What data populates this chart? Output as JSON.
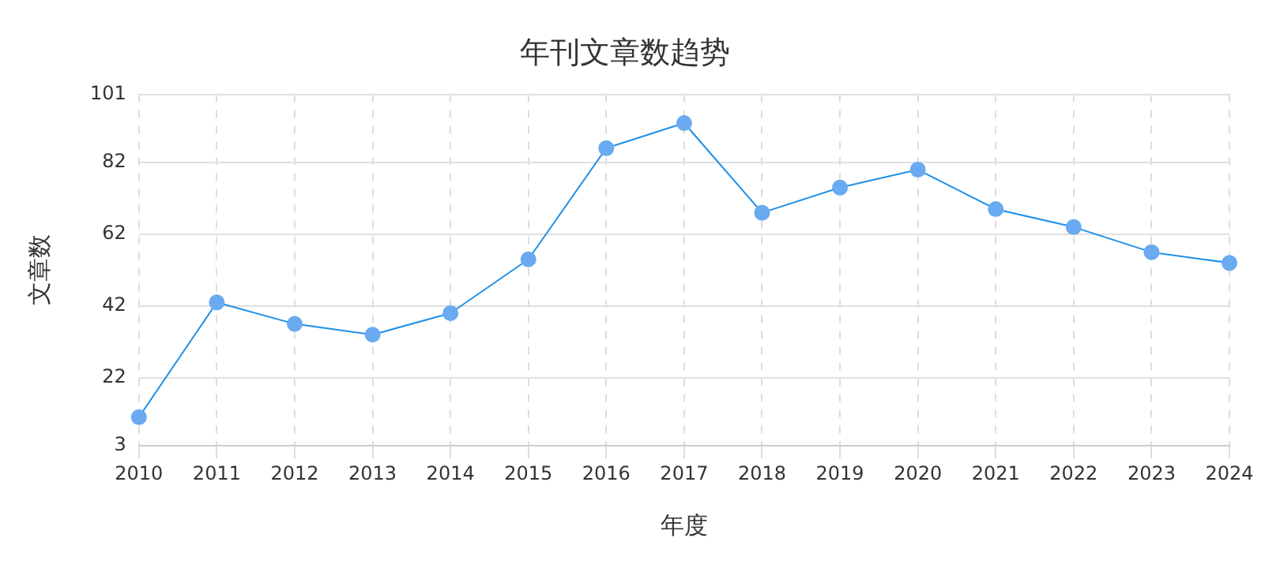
{
  "chart_data": {
    "type": "line",
    "title": "年刊文章数趋势",
    "xlabel": "年度",
    "ylabel": "文章数",
    "categories": [
      "2010",
      "2011",
      "2012",
      "2013",
      "2014",
      "2015",
      "2016",
      "2017",
      "2018",
      "2019",
      "2020",
      "2021",
      "2022",
      "2023",
      "2024"
    ],
    "series": [
      {
        "color": "#1e90e8",
        "values": [
          11,
          43,
          37,
          34,
          40,
          55,
          86,
          93,
          68,
          75,
          80,
          69,
          64,
          57,
          54
        ]
      }
    ],
    "ylim": [
      3,
      101
    ],
    "yticks": [
      3,
      22,
      42,
      62,
      82,
      101
    ],
    "grid": true,
    "marker": "circle",
    "line_style": "solid",
    "legend": false
  }
}
